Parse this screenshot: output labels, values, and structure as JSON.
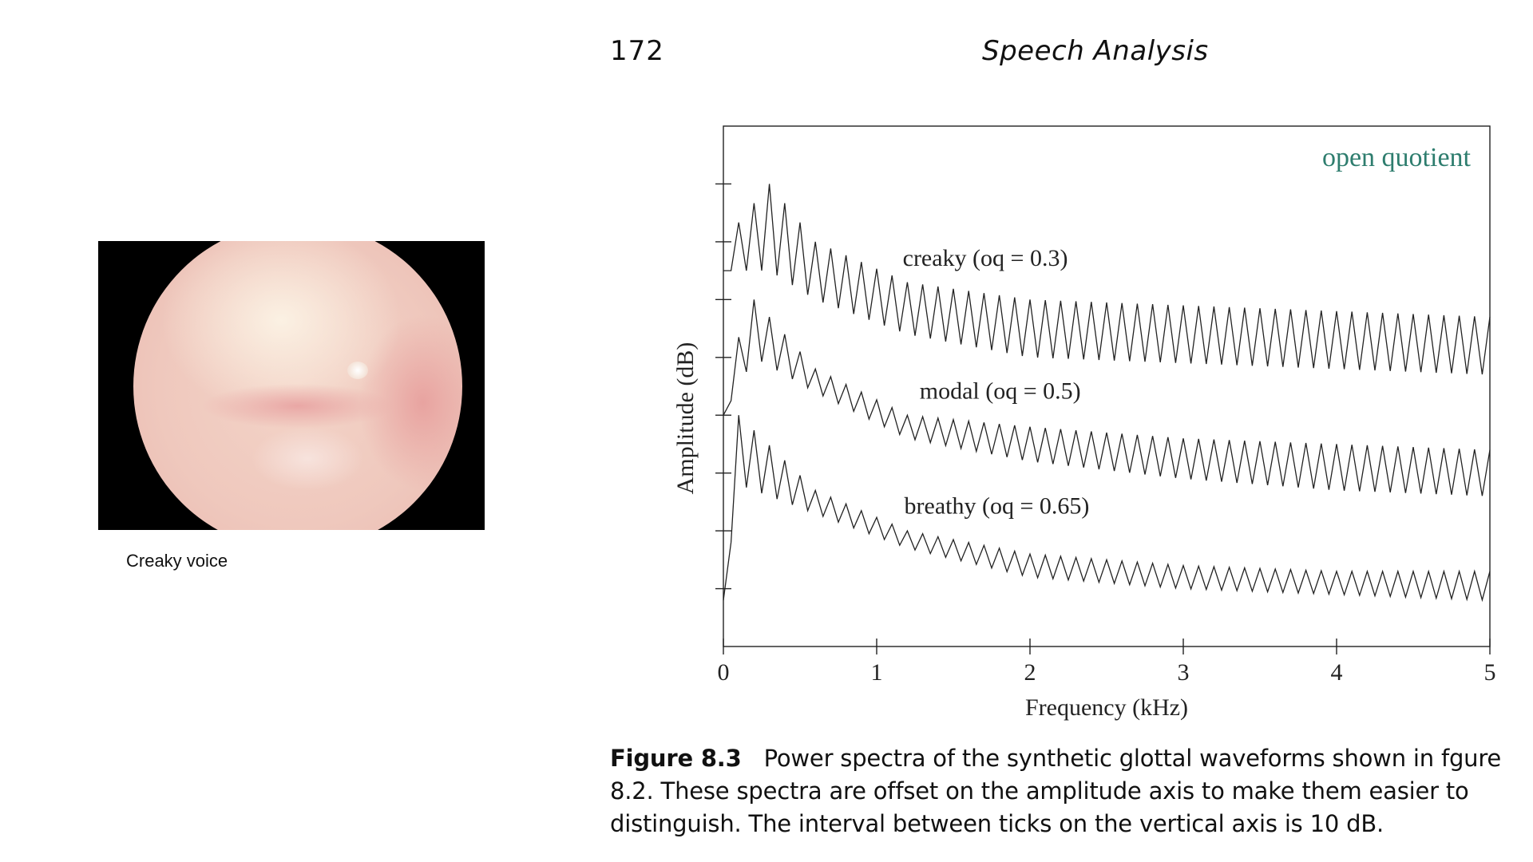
{
  "header": {
    "page_number": "172",
    "running_title": "Speech Analysis"
  },
  "photo": {
    "caption": "Creaky voice"
  },
  "figure": {
    "label": "Figure 8.3",
    "caption": "Power spectra of the synthetic glottal waveforms shown in fgure 8.2. These spectra are offset on the amplitude axis to make them easier to distinguish. The interval between ticks on the vertical axis is 10 dB."
  },
  "chart_data": {
    "type": "line",
    "title": "",
    "annotation": "open quotient",
    "annotation_color": "#2e7d6e",
    "xlabel": "Frequency (kHz)",
    "ylabel": "Amplitude (dB)",
    "xlim": [
      0,
      5
    ],
    "ylim": [
      -80,
      10
    ],
    "x_ticks": [
      "0",
      "1",
      "2",
      "3",
      "4",
      "5"
    ],
    "y_tick_interval_db": 10,
    "y_ticks_count": 8,
    "harmonic_spacing_khz": 0.1,
    "series": [
      {
        "name": "creaky (oq = 0.3)",
        "peak_envelope": [
          [
            0.0,
            -10
          ],
          [
            0.3,
            0
          ],
          [
            0.6,
            -10
          ],
          [
            1.2,
            -17
          ],
          [
            2.0,
            -20
          ],
          [
            3.0,
            -21
          ],
          [
            4.0,
            -22
          ],
          [
            5.0,
            -23
          ]
        ],
        "dip_envelope": [
          [
            0.0,
            -15
          ],
          [
            0.3,
            -15
          ],
          [
            0.6,
            -20
          ],
          [
            1.2,
            -26
          ],
          [
            2.0,
            -30
          ],
          [
            3.0,
            -31
          ],
          [
            4.0,
            -32
          ],
          [
            5.0,
            -33
          ]
        ]
      },
      {
        "name": "modal (oq = 0.5)",
        "peak_envelope": [
          [
            0.0,
            -33
          ],
          [
            0.2,
            -20
          ],
          [
            0.6,
            -32
          ],
          [
            1.2,
            -40
          ],
          [
            2.0,
            -42
          ],
          [
            3.0,
            -44
          ],
          [
            4.0,
            -45
          ],
          [
            5.0,
            -46
          ]
        ],
        "dip_envelope": [
          [
            0.0,
            -40
          ],
          [
            0.2,
            -30
          ],
          [
            0.6,
            -36
          ],
          [
            1.2,
            -44
          ],
          [
            2.0,
            -48
          ],
          [
            3.0,
            -51
          ],
          [
            4.0,
            -53
          ],
          [
            5.0,
            -54
          ]
        ]
      },
      {
        "name": "breathy (oq = 0.65)",
        "peak_envelope": [
          [
            0.0,
            -70
          ],
          [
            0.1,
            -40
          ],
          [
            0.6,
            -53
          ],
          [
            1.2,
            -60
          ],
          [
            2.0,
            -64
          ],
          [
            3.0,
            -66
          ],
          [
            4.0,
            -67
          ],
          [
            5.0,
            -67
          ]
        ],
        "dip_envelope": [
          [
            0.0,
            -72
          ],
          [
            0.1,
            -52
          ],
          [
            0.6,
            -57
          ],
          [
            1.2,
            -63
          ],
          [
            2.0,
            -68
          ],
          [
            3.0,
            -70
          ],
          [
            4.0,
            -71
          ],
          [
            5.0,
            -72
          ]
        ]
      }
    ]
  }
}
